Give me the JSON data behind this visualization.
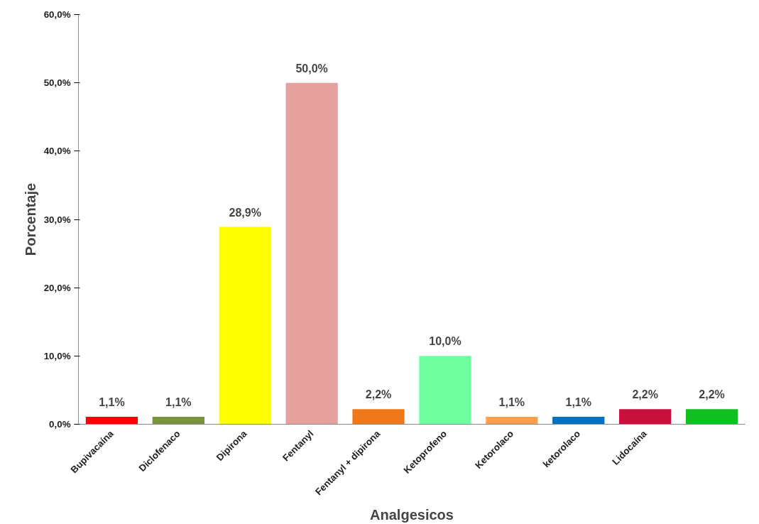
{
  "chart_data": {
    "type": "bar",
    "xlabel": "Analgesicos",
    "ylabel": "Porcentaje",
    "categories": [
      "Bupivacaína",
      "Diclofenaco",
      "Dipirona",
      "Fentanyl",
      "Fentanyl + dipirona",
      "Ketoprofeno",
      "Ketorolaco",
      "ketorolaco",
      "Lidocaína",
      null
    ],
    "values": [
      1.1,
      1.1,
      28.9,
      50.0,
      2.2,
      10.0,
      1.1,
      1.1,
      2.2,
      2.2
    ],
    "colors": [
      "#ff0000",
      "#77933c",
      "#ffff00",
      "#e6a09e",
      "#f07818",
      "#70ffa0",
      "#ffa050",
      "#0070c0",
      "#c8103c",
      "#10c020"
    ],
    "value_labels": [
      "1,1%",
      "1,1%",
      "28,9%",
      "50,0%",
      "2,2%",
      "10,0%",
      "1,1%",
      "1,1%",
      "2,2%",
      "2,2%"
    ],
    "ylim": [
      0,
      60
    ],
    "yticks": [
      {
        "value": 0,
        "label": "0,0%"
      },
      {
        "value": 10,
        "label": "10,0%"
      },
      {
        "value": 20,
        "label": "20,0%"
      },
      {
        "value": 30,
        "label": "30,0%"
      },
      {
        "value": 40,
        "label": "40,0%"
      },
      {
        "value": 50,
        "label": "50,0%"
      },
      {
        "value": 60,
        "label": "60,0%"
      }
    ],
    "grid": false
  }
}
